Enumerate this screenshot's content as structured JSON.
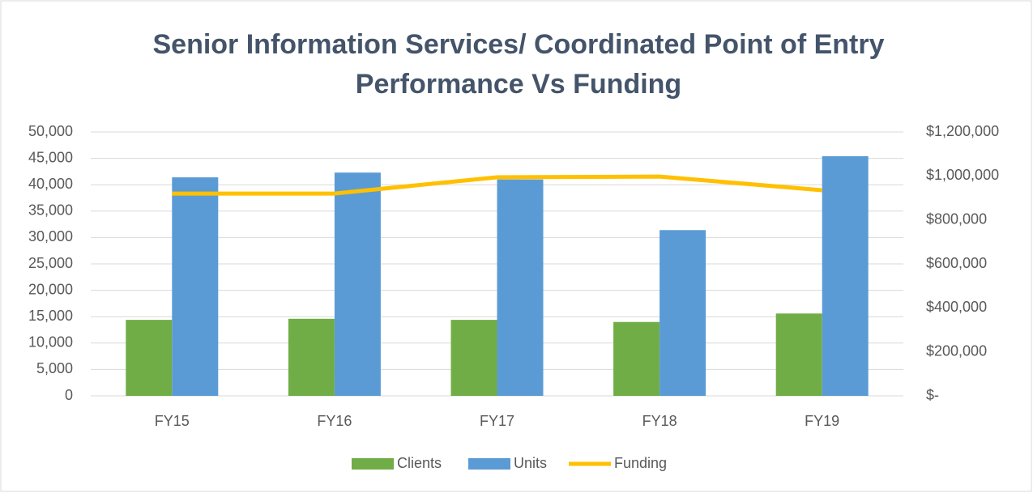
{
  "chart_data": {
    "type": "bar_line",
    "title": [
      "Senior Information Services/ Coordinated Point of Entry",
      "Performance Vs Funding"
    ],
    "categories": [
      "FY15",
      "FY16",
      "FY17",
      "FY18",
      "FY19"
    ],
    "series": [
      {
        "name": "Clients",
        "color": "#70ad47",
        "type": "bar",
        "values": [
          14400,
          14600,
          14400,
          14000,
          15600
        ]
      },
      {
        "name": "Units",
        "color": "#5b9bd5",
        "type": "bar",
        "values": [
          41400,
          42300,
          41000,
          31400,
          45400
        ]
      },
      {
        "name": "Funding",
        "color": "#ffc000",
        "type": "line",
        "axis": "y2",
        "values": [
          920000,
          920000,
          994000,
          997000,
          935000
        ]
      }
    ],
    "ylim": [
      0,
      50000
    ],
    "yticks": [
      0,
      {
        "value": 5000,
        "label": "5,000"
      },
      {
        "value": 10000,
        "label": "10,000"
      },
      {
        "value": 15000,
        "label": "15,000"
      },
      {
        "value": 20000,
        "label": "20,000"
      },
      {
        "value": 25000,
        "label": "25,000"
      },
      {
        "value": 30000,
        "label": "30,000"
      },
      {
        "value": 35000,
        "label": "35,000"
      },
      {
        "value": 40000,
        "label": "40,000"
      },
      {
        "value": 45000,
        "label": "45,000"
      },
      {
        "value": 50000,
        "label": "50,000"
      }
    ],
    "y2lim": [
      0,
      1200000
    ],
    "y2ticks": [
      {
        "value": 0,
        "label": "$-"
      },
      {
        "value": 200000,
        "label": "$200,000"
      },
      {
        "value": 400000,
        "label": "$400,000"
      },
      {
        "value": 600000,
        "label": "$600,000"
      },
      {
        "value": 800000,
        "label": "$800,000"
      },
      {
        "value": 1000000,
        "label": "$1,000,000"
      },
      {
        "value": 1200000,
        "label": "$1,200,000"
      }
    ],
    "grid": true,
    "legend": "bottom"
  }
}
